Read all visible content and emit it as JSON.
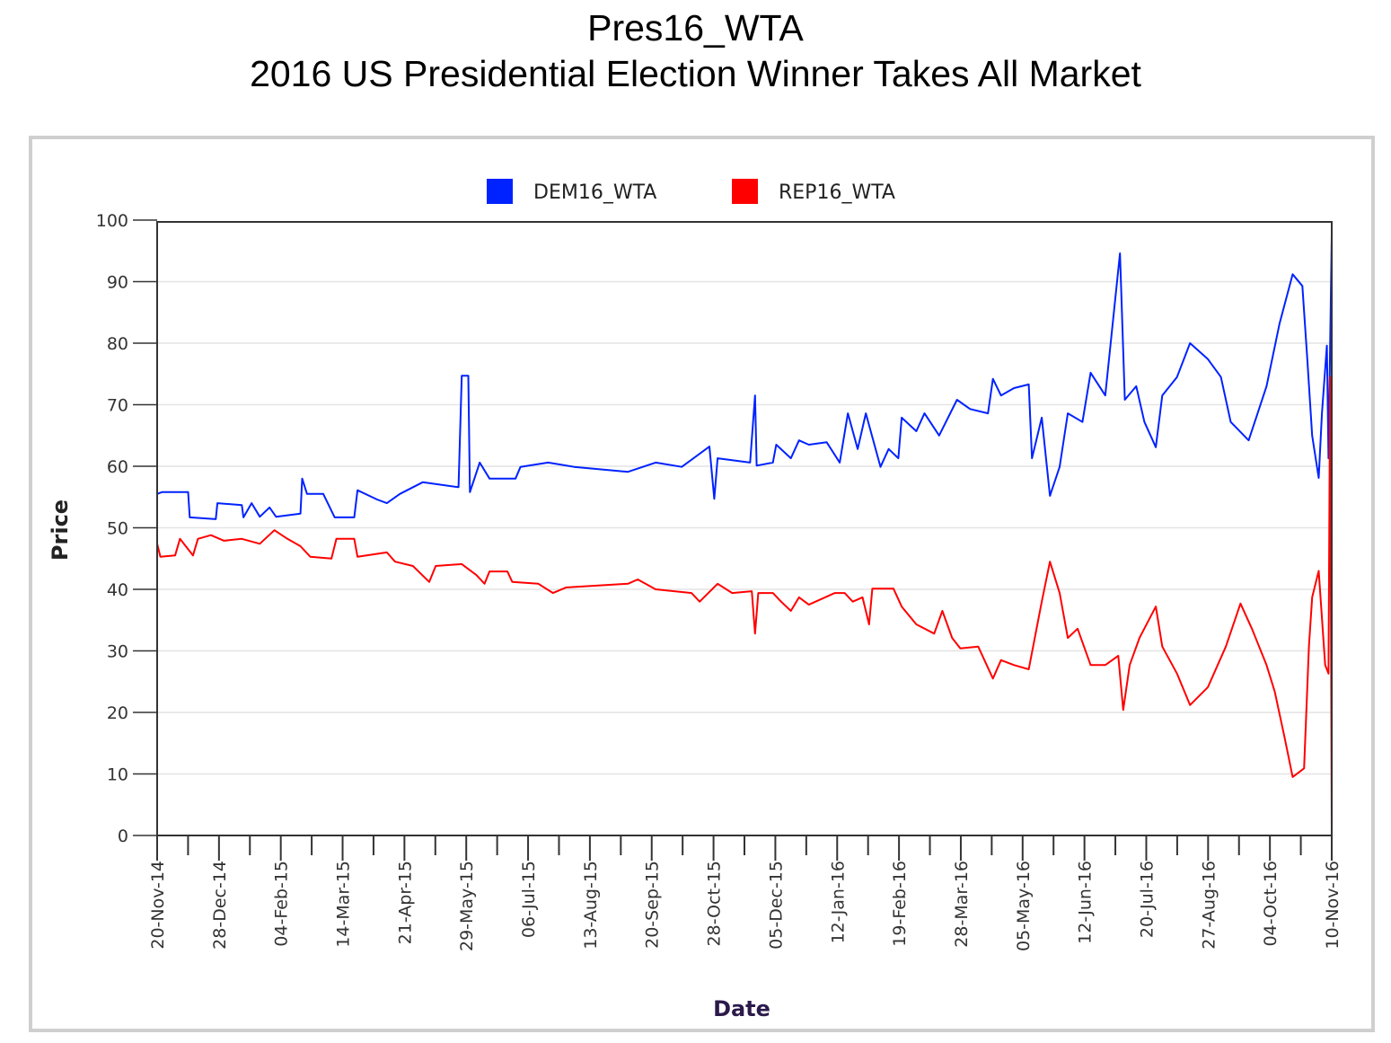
{
  "title": "Pres16_WTA",
  "subtitle": "2016 US Presidential Election Winner Takes All Market",
  "chart_data": {
    "type": "line",
    "title": "Pres16_WTA",
    "subtitle": "2016 US Presidential Election Winner Takes All Market",
    "xlabel": "Date",
    "ylabel": "Price",
    "x_units": "days since 20-Nov-14",
    "xlim": [
      0,
      721
    ],
    "ylim": [
      0,
      100
    ],
    "yticks": [
      "0",
      "10",
      "20",
      "30",
      "40",
      "50",
      "60",
      "70",
      "80",
      "90",
      "100"
    ],
    "xtick_labels": [
      "20-Nov-14",
      "28-Dec-14",
      "04-Feb-15",
      "14-Mar-15",
      "21-Apr-15",
      "29-May-15",
      "06-Jul-15",
      "13-Aug-15",
      "20-Sep-15",
      "28-Oct-15",
      "05-Dec-15",
      "12-Jan-16",
      "19-Feb-16",
      "28-Mar-16",
      "05-May-16",
      "12-Jun-16",
      "20-Jul-16",
      "27-Aug-16",
      "04-Oct-16",
      "10-Nov-16"
    ],
    "grid": true,
    "legend_position": "top-center",
    "series": [
      {
        "name": "DEM16_WTA",
        "color": "#0022ff",
        "points": [
          [
            0,
            55.5
          ],
          [
            3,
            55.8
          ],
          [
            19,
            55.8
          ],
          [
            20,
            51.7
          ],
          [
            36,
            51.4
          ],
          [
            37,
            54
          ],
          [
            52,
            53.7
          ],
          [
            53,
            51.7
          ],
          [
            58,
            54
          ],
          [
            63,
            51.8
          ],
          [
            69,
            53.3
          ],
          [
            73,
            51.8
          ],
          [
            88,
            52.3
          ],
          [
            89,
            58
          ],
          [
            92,
            55.5
          ],
          [
            102,
            55.5
          ],
          [
            109,
            51.7
          ],
          [
            121,
            51.7
          ],
          [
            123,
            56.1
          ],
          [
            135,
            54.6
          ],
          [
            141,
            54
          ],
          [
            149,
            55.5
          ],
          [
            163,
            57.4
          ],
          [
            185,
            56.6
          ],
          [
            187,
            74.7
          ],
          [
            191,
            74.7
          ],
          [
            192,
            55.8
          ],
          [
            198,
            60.6
          ],
          [
            204,
            58
          ],
          [
            220,
            58
          ],
          [
            223,
            59.9
          ],
          [
            240,
            60.6
          ],
          [
            256,
            59.9
          ],
          [
            289,
            59.1
          ],
          [
            306,
            60.6
          ],
          [
            322,
            59.9
          ],
          [
            339,
            63.2
          ],
          [
            342,
            54.7
          ],
          [
            344,
            61.3
          ],
          [
            364,
            60.6
          ],
          [
            367,
            71.5
          ],
          [
            368,
            60.1
          ],
          [
            378,
            60.6
          ],
          [
            380,
            63.5
          ],
          [
            389,
            61.3
          ],
          [
            394,
            64.2
          ],
          [
            400,
            63.5
          ],
          [
            411,
            63.9
          ],
          [
            419,
            60.6
          ],
          [
            424,
            68.6
          ],
          [
            430,
            62.8
          ],
          [
            435,
            68.6
          ],
          [
            444,
            59.9
          ],
          [
            449,
            62.8
          ],
          [
            455,
            61.3
          ],
          [
            457,
            67.9
          ],
          [
            466,
            65.7
          ],
          [
            471,
            68.6
          ],
          [
            480,
            65
          ],
          [
            491,
            70.8
          ],
          [
            499,
            69.3
          ],
          [
            510,
            68.6
          ],
          [
            513,
            74.2
          ],
          [
            518,
            71.5
          ],
          [
            526,
            72.7
          ],
          [
            535,
            73.3
          ],
          [
            537,
            61.3
          ],
          [
            543,
            67.9
          ],
          [
            548,
            55.2
          ],
          [
            554,
            59.9
          ],
          [
            559,
            68.6
          ],
          [
            568,
            67.2
          ],
          [
            573,
            75.2
          ],
          [
            582,
            71.5
          ],
          [
            591,
            94.6
          ],
          [
            594,
            70.8
          ],
          [
            601,
            73
          ],
          [
            606,
            67.2
          ],
          [
            613,
            63.1
          ],
          [
            617,
            71.5
          ],
          [
            626,
            74.5
          ],
          [
            634,
            80
          ],
          [
            645,
            77.4
          ],
          [
            653,
            74.5
          ],
          [
            659,
            67.2
          ],
          [
            670,
            64.2
          ],
          [
            681,
            73
          ],
          [
            689,
            83.2
          ],
          [
            697,
            91.2
          ],
          [
            703,
            89.3
          ],
          [
            706,
            77.4
          ],
          [
            709,
            65
          ],
          [
            713,
            58.1
          ],
          [
            715,
            68.6
          ],
          [
            718,
            79.6
          ],
          [
            719,
            61.3
          ],
          [
            721,
            97.5
          ]
        ]
      },
      {
        "name": "REP16_WTA",
        "color": "#ff0000",
        "points": [
          [
            0,
            47.4
          ],
          [
            2,
            45.3
          ],
          [
            11,
            45.5
          ],
          [
            14,
            48.2
          ],
          [
            22,
            45.5
          ],
          [
            25,
            48.2
          ],
          [
            33,
            48.8
          ],
          [
            41,
            47.9
          ],
          [
            52,
            48.2
          ],
          [
            63,
            47.4
          ],
          [
            72,
            49.6
          ],
          [
            80,
            48.2
          ],
          [
            88,
            47
          ],
          [
            94,
            45.3
          ],
          [
            107,
            45
          ],
          [
            110,
            48.2
          ],
          [
            121,
            48.2
          ],
          [
            123,
            45.3
          ],
          [
            141,
            46
          ],
          [
            146,
            44.5
          ],
          [
            157,
            43.8
          ],
          [
            167,
            41.2
          ],
          [
            171,
            43.8
          ],
          [
            187,
            44.1
          ],
          [
            196,
            42.3
          ],
          [
            201,
            40.9
          ],
          [
            204,
            42.9
          ],
          [
            215,
            42.9
          ],
          [
            218,
            41.2
          ],
          [
            234,
            40.9
          ],
          [
            243,
            39.4
          ],
          [
            251,
            40.3
          ],
          [
            289,
            40.9
          ],
          [
            295,
            41.6
          ],
          [
            306,
            40
          ],
          [
            328,
            39.4
          ],
          [
            333,
            38
          ],
          [
            344,
            40.9
          ],
          [
            353,
            39.4
          ],
          [
            365,
            39.7
          ],
          [
            367,
            32.8
          ],
          [
            369,
            39.4
          ],
          [
            378,
            39.4
          ],
          [
            383,
            38
          ],
          [
            389,
            36.5
          ],
          [
            394,
            38.7
          ],
          [
            400,
            37.5
          ],
          [
            416,
            39.4
          ],
          [
            422,
            39.4
          ],
          [
            427,
            38
          ],
          [
            433,
            38.7
          ],
          [
            437,
            34.3
          ],
          [
            439,
            40.1
          ],
          [
            452,
            40.1
          ],
          [
            457,
            37.2
          ],
          [
            466,
            34.3
          ],
          [
            477,
            32.8
          ],
          [
            482,
            36.5
          ],
          [
            488,
            32.1
          ],
          [
            493,
            30.4
          ],
          [
            504,
            30.7
          ],
          [
            513,
            25.5
          ],
          [
            518,
            28.5
          ],
          [
            526,
            27.7
          ],
          [
            535,
            27
          ],
          [
            543,
            38
          ],
          [
            548,
            44.5
          ],
          [
            554,
            39.4
          ],
          [
            559,
            32.1
          ],
          [
            565,
            33.6
          ],
          [
            573,
            27.7
          ],
          [
            582,
            27.7
          ],
          [
            590,
            29.2
          ],
          [
            593,
            20.4
          ],
          [
            597,
            27.7
          ],
          [
            603,
            32.1
          ],
          [
            613,
            37.2
          ],
          [
            617,
            30.7
          ],
          [
            626,
            26.3
          ],
          [
            634,
            21.2
          ],
          [
            645,
            24.1
          ],
          [
            656,
            30.7
          ],
          [
            665,
            37.7
          ],
          [
            672,
            33.6
          ],
          [
            681,
            27.7
          ],
          [
            686,
            23.4
          ],
          [
            692,
            16
          ],
          [
            697,
            9.5
          ],
          [
            704,
            10.9
          ],
          [
            707,
            30.7
          ],
          [
            709,
            38.7
          ],
          [
            713,
            43
          ],
          [
            717,
            27.7
          ],
          [
            719,
            26.3
          ],
          [
            720,
            74.5
          ],
          [
            721,
            0.3
          ]
        ]
      }
    ]
  }
}
